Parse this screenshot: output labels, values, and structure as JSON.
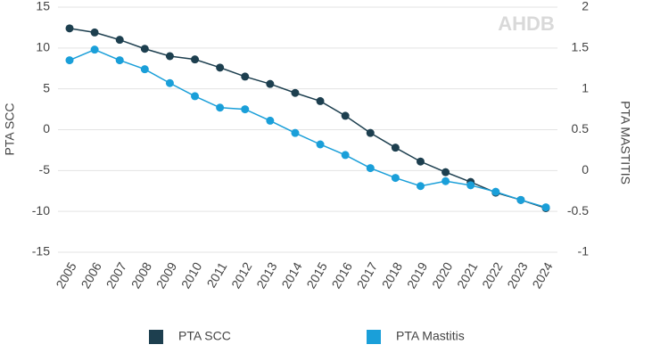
{
  "chart_data": {
    "type": "line",
    "watermark": "AHDB",
    "ylabel": "PTA SCC",
    "y2label": "PTA MASTITIS",
    "categories": [
      "2005",
      "2006",
      "2007",
      "2008",
      "2009",
      "2010",
      "2011",
      "2012",
      "2013",
      "2014",
      "2015",
      "2016",
      "2017",
      "2018",
      "2019",
      "2020",
      "2021",
      "2022",
      "2023",
      "2024"
    ],
    "series": [
      {
        "name": "PTA SCC",
        "color": "#1d3f4f",
        "values": [
          12.4,
          11.9,
          11.0,
          9.9,
          9.0,
          8.6,
          7.6,
          6.5,
          5.6,
          4.5,
          3.5,
          1.7,
          -0.4,
          -2.2,
          -3.9,
          -5.2,
          -6.4,
          -7.7,
          -8.6,
          -9.6
        ]
      },
      {
        "name": "PTA Mastitis",
        "color": "#1a9fd9",
        "axis": "y2",
        "values": [
          1.35,
          1.48,
          1.35,
          1.24,
          1.07,
          0.91,
          0.77,
          0.75,
          0.61,
          0.46,
          0.32,
          0.19,
          0.03,
          -0.09,
          -0.19,
          -0.13,
          -0.18,
          -0.26,
          -0.36,
          -0.45
        ]
      }
    ],
    "ylim": [
      -15,
      15
    ],
    "yticks": [
      -15,
      -10,
      -5,
      0,
      5,
      10,
      15
    ],
    "y2lim": [
      -1,
      2
    ],
    "y2ticks": [
      -1,
      -0.5,
      0,
      0.5,
      1,
      1.5,
      2
    ],
    "grid": true
  }
}
